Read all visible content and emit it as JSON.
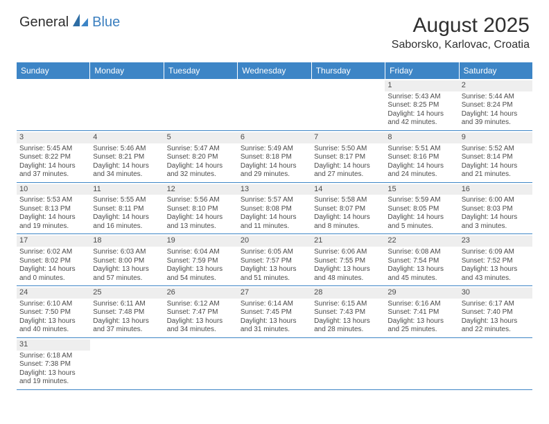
{
  "logo": {
    "text1": "General",
    "text2": "Blue"
  },
  "title": "August 2025",
  "location": "Saborsko, Karlovac, Croatia",
  "colors": {
    "headerBg": "#3d85c6",
    "headerText": "#ffffff",
    "dayNumBg": "#eeeeee",
    "rowDivider": "#3d85c6",
    "bodyText": "#4a4a4a"
  },
  "dayNames": [
    "Sunday",
    "Monday",
    "Tuesday",
    "Wednesday",
    "Thursday",
    "Friday",
    "Saturday"
  ],
  "weeks": [
    [
      {
        "empty": true
      },
      {
        "empty": true
      },
      {
        "empty": true
      },
      {
        "empty": true
      },
      {
        "empty": true
      },
      {
        "day": 1,
        "sunrise": "5:43 AM",
        "sunset": "8:25 PM",
        "daylight": "14 hours and 42 minutes."
      },
      {
        "day": 2,
        "sunrise": "5:44 AM",
        "sunset": "8:24 PM",
        "daylight": "14 hours and 39 minutes."
      }
    ],
    [
      {
        "day": 3,
        "sunrise": "5:45 AM",
        "sunset": "8:22 PM",
        "daylight": "14 hours and 37 minutes."
      },
      {
        "day": 4,
        "sunrise": "5:46 AM",
        "sunset": "8:21 PM",
        "daylight": "14 hours and 34 minutes."
      },
      {
        "day": 5,
        "sunrise": "5:47 AM",
        "sunset": "8:20 PM",
        "daylight": "14 hours and 32 minutes."
      },
      {
        "day": 6,
        "sunrise": "5:49 AM",
        "sunset": "8:18 PM",
        "daylight": "14 hours and 29 minutes."
      },
      {
        "day": 7,
        "sunrise": "5:50 AM",
        "sunset": "8:17 PM",
        "daylight": "14 hours and 27 minutes."
      },
      {
        "day": 8,
        "sunrise": "5:51 AM",
        "sunset": "8:16 PM",
        "daylight": "14 hours and 24 minutes."
      },
      {
        "day": 9,
        "sunrise": "5:52 AM",
        "sunset": "8:14 PM",
        "daylight": "14 hours and 21 minutes."
      }
    ],
    [
      {
        "day": 10,
        "sunrise": "5:53 AM",
        "sunset": "8:13 PM",
        "daylight": "14 hours and 19 minutes."
      },
      {
        "day": 11,
        "sunrise": "5:55 AM",
        "sunset": "8:11 PM",
        "daylight": "14 hours and 16 minutes."
      },
      {
        "day": 12,
        "sunrise": "5:56 AM",
        "sunset": "8:10 PM",
        "daylight": "14 hours and 13 minutes."
      },
      {
        "day": 13,
        "sunrise": "5:57 AM",
        "sunset": "8:08 PM",
        "daylight": "14 hours and 11 minutes."
      },
      {
        "day": 14,
        "sunrise": "5:58 AM",
        "sunset": "8:07 PM",
        "daylight": "14 hours and 8 minutes."
      },
      {
        "day": 15,
        "sunrise": "5:59 AM",
        "sunset": "8:05 PM",
        "daylight": "14 hours and 5 minutes."
      },
      {
        "day": 16,
        "sunrise": "6:00 AM",
        "sunset": "8:03 PM",
        "daylight": "14 hours and 3 minutes."
      }
    ],
    [
      {
        "day": 17,
        "sunrise": "6:02 AM",
        "sunset": "8:02 PM",
        "daylight": "14 hours and 0 minutes."
      },
      {
        "day": 18,
        "sunrise": "6:03 AM",
        "sunset": "8:00 PM",
        "daylight": "13 hours and 57 minutes."
      },
      {
        "day": 19,
        "sunrise": "6:04 AM",
        "sunset": "7:59 PM",
        "daylight": "13 hours and 54 minutes."
      },
      {
        "day": 20,
        "sunrise": "6:05 AM",
        "sunset": "7:57 PM",
        "daylight": "13 hours and 51 minutes."
      },
      {
        "day": 21,
        "sunrise": "6:06 AM",
        "sunset": "7:55 PM",
        "daylight": "13 hours and 48 minutes."
      },
      {
        "day": 22,
        "sunrise": "6:08 AM",
        "sunset": "7:54 PM",
        "daylight": "13 hours and 45 minutes."
      },
      {
        "day": 23,
        "sunrise": "6:09 AM",
        "sunset": "7:52 PM",
        "daylight": "13 hours and 43 minutes."
      }
    ],
    [
      {
        "day": 24,
        "sunrise": "6:10 AM",
        "sunset": "7:50 PM",
        "daylight": "13 hours and 40 minutes."
      },
      {
        "day": 25,
        "sunrise": "6:11 AM",
        "sunset": "7:48 PM",
        "daylight": "13 hours and 37 minutes."
      },
      {
        "day": 26,
        "sunrise": "6:12 AM",
        "sunset": "7:47 PM",
        "daylight": "13 hours and 34 minutes."
      },
      {
        "day": 27,
        "sunrise": "6:14 AM",
        "sunset": "7:45 PM",
        "daylight": "13 hours and 31 minutes."
      },
      {
        "day": 28,
        "sunrise": "6:15 AM",
        "sunset": "7:43 PM",
        "daylight": "13 hours and 28 minutes."
      },
      {
        "day": 29,
        "sunrise": "6:16 AM",
        "sunset": "7:41 PM",
        "daylight": "13 hours and 25 minutes."
      },
      {
        "day": 30,
        "sunrise": "6:17 AM",
        "sunset": "7:40 PM",
        "daylight": "13 hours and 22 minutes."
      }
    ],
    [
      {
        "day": 31,
        "sunrise": "6:18 AM",
        "sunset": "7:38 PM",
        "daylight": "13 hours and 19 minutes."
      },
      {
        "empty": true
      },
      {
        "empty": true
      },
      {
        "empty": true
      },
      {
        "empty": true
      },
      {
        "empty": true
      },
      {
        "empty": true
      }
    ]
  ],
  "labels": {
    "sunrise": "Sunrise:",
    "sunset": "Sunset:",
    "daylight": "Daylight:"
  }
}
